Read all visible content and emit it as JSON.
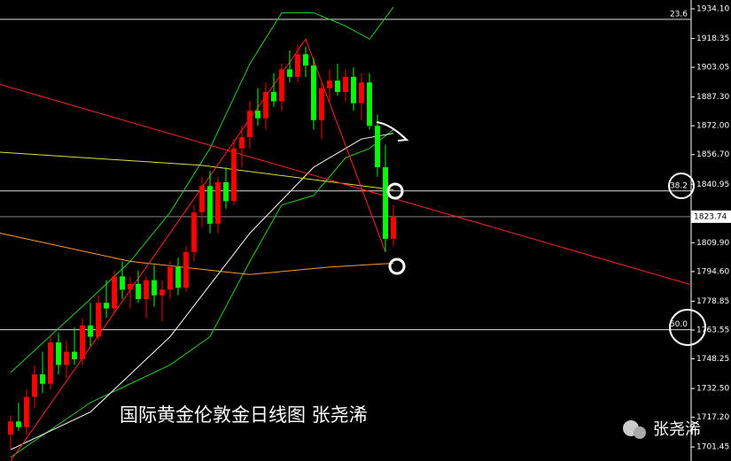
{
  "chart_data": {
    "type": "candlestick",
    "title": "国际黄金伦敦金日线图 张尧浠",
    "watermark": "张尧浠",
    "xlim": [
      -1.33,
      85.33
    ],
    "ylim": [
      1694.0,
      1938.8
    ],
    "yticks": [
      {
        "value": 1934.1,
        "label": "1934.10"
      },
      {
        "value": 1918.35,
        "label": "1918.35"
      },
      {
        "value": 1903.05,
        "label": "1903.05"
      },
      {
        "value": 1887.3,
        "label": "1887.30"
      },
      {
        "value": 1872.0,
        "label": "1872.00"
      },
      {
        "value": 1856.7,
        "label": "1856.70"
      },
      {
        "value": 1840.95,
        "label": "1840.95"
      },
      {
        "value": 1809.9,
        "label": "1809.90"
      },
      {
        "value": 1794.6,
        "label": "1794.60"
      },
      {
        "value": 1778.85,
        "label": "1778.85"
      },
      {
        "value": 1763.55,
        "label": "1763.55"
      },
      {
        "value": 1748.25,
        "label": "1748.25"
      },
      {
        "value": 1732.5,
        "label": "1732.50"
      },
      {
        "value": 1717.2,
        "label": "1717.20"
      },
      {
        "value": 1701.45,
        "label": "1701.45"
      }
    ],
    "up_color": "#ff0000",
    "down_color": "#00ff00",
    "open": [
      1708,
      1715,
      1712,
      1728,
      1740,
      1735,
      1757,
      1745,
      1752,
      1748,
      1766,
      1760,
      1778,
      1775,
      1792,
      1785,
      1788,
      1780,
      1790,
      1782,
      1785,
      1797,
      1786,
      1805,
      1826,
      1840,
      1820,
      1842,
      1832,
      1860,
      1866,
      1880,
      1876,
      1890,
      1885,
      1902,
      1898,
      1910,
      1904,
      1875,
      1892,
      1896,
      1890,
      1898,
      1884,
      1895,
      1872,
      1850,
      1812
    ],
    "high": [
      1718,
      1725,
      1732,
      1745,
      1752,
      1760,
      1762,
      1758,
      1765,
      1770,
      1778,
      1782,
      1790,
      1795,
      1800,
      1792,
      1795,
      1792,
      1798,
      1790,
      1800,
      1802,
      1808,
      1830,
      1845,
      1848,
      1845,
      1850,
      1865,
      1872,
      1885,
      1892,
      1895,
      1900,
      1905,
      1912,
      1915,
      1914,
      1908,
      1895,
      1902,
      1905,
      1902,
      1903,
      1900,
      1900,
      1878,
      1862,
      1830
    ],
    "low": [
      1700,
      1710,
      1708,
      1722,
      1730,
      1732,
      1740,
      1738,
      1745,
      1745,
      1755,
      1758,
      1770,
      1772,
      1780,
      1775,
      1778,
      1770,
      1776,
      1768,
      1780,
      1782,
      1784,
      1800,
      1818,
      1815,
      1815,
      1828,
      1830,
      1850,
      1860,
      1872,
      1870,
      1882,
      1880,
      1895,
      1895,
      1898,
      1870,
      1865,
      1885,
      1888,
      1885,
      1880,
      1875,
      1870,
      1845,
      1805,
      1808
    ],
    "close": [
      1715,
      1712,
      1728,
      1740,
      1735,
      1757,
      1745,
      1752,
      1748,
      1766,
      1760,
      1778,
      1775,
      1792,
      1785,
      1788,
      1780,
      1790,
      1782,
      1785,
      1797,
      1786,
      1805,
      1826,
      1840,
      1820,
      1842,
      1832,
      1860,
      1866,
      1880,
      1876,
      1890,
      1885,
      1902,
      1898,
      1910,
      1904,
      1875,
      1892,
      1896,
      1890,
      1898,
      1884,
      1895,
      1872,
      1850,
      1812,
      1823.74
    ],
    "overlays": [
      {
        "color": "#22cc22",
        "x": [
          0,
          10,
          15,
          20,
          25,
          30,
          34,
          38,
          42,
          45,
          48
        ],
        "values": [
          1741,
          1780,
          1800,
          1826,
          1860,
          1905,
          1932,
          1932,
          1925,
          1918,
          1935
        ]
      },
      {
        "color": "#22cc22",
        "x": [
          0,
          10,
          15,
          20,
          25,
          30,
          34,
          38,
          42,
          45,
          48
        ],
        "values": [
          1696,
          1725,
          1735,
          1745,
          1760,
          1800,
          1830,
          1835,
          1855,
          1860,
          1870
        ]
      },
      {
        "color": "#ffffff",
        "x": [
          0,
          10,
          20,
          30,
          38,
          44,
          48
        ],
        "values": [
          1700,
          1720,
          1760,
          1815,
          1850,
          1865,
          1868
        ]
      },
      {
        "color": "#dddd44",
        "x": [
          -1.33,
          24,
          48
        ],
        "values": [
          1858,
          1851,
          1838
        ]
      },
      {
        "color": "#ff9933",
        "x": [
          -1.33,
          15,
          30,
          40,
          48
        ],
        "values": [
          1815,
          1800,
          1793,
          1797,
          1799
        ]
      },
      {
        "color": "#ff2222",
        "x": [
          -1.33,
          85.33
        ],
        "values": [
          1894,
          1787.6
        ]
      },
      {
        "color": "#ff2222",
        "x": [
          0,
          37,
          47
        ],
        "values": [
          1694,
          1918,
          1805
        ]
      }
    ],
    "levels": [
      {
        "value": 1928.5,
        "label": "23.6"
      },
      {
        "value": 1837.4,
        "label": "38.2"
      },
      {
        "value": 1763.7,
        "label": "50.0"
      }
    ],
    "current_price": 1823.74
  }
}
